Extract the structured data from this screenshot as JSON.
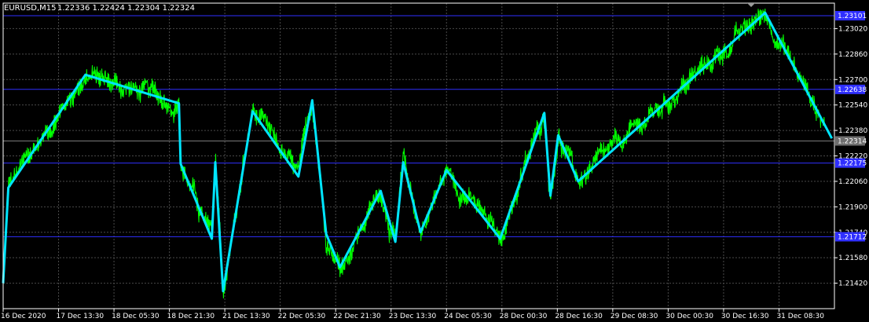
{
  "header": {
    "symbol": "EURUSD,M15",
    "ohlc": "1.22336 1.22424 1.22304 1.22324"
  },
  "colors": {
    "background": "#000000",
    "grid": "#4a4a4a",
    "axis": "#ffffff",
    "price_line": "#00ff00",
    "zigzag": "#00e5ff",
    "level_line": "#2f2fff",
    "level_label_bg": "#2f2fff",
    "current_label_bg": "#6e6e6e"
  },
  "chart_data": {
    "type": "line",
    "y_ticks": [
      "1.23020",
      "1.22860",
      "1.22700",
      "1.22540",
      "1.22380",
      "1.22220",
      "1.22060",
      "1.21900",
      "1.21740",
      "1.21580",
      "1.21420"
    ],
    "y_tick_values": [
      1.2302,
      1.2286,
      1.227,
      1.2254,
      1.2238,
      1.2222,
      1.2206,
      1.219,
      1.2174,
      1.2158,
      1.2142
    ],
    "x_tick_labels": [
      "16 Dec 2020",
      "17 Dec 13:30",
      "18 Dec 05:30",
      "18 Dec 21:30",
      "21 Dec 13:30",
      "22 Dec 05:30",
      "22 Dec 21:30",
      "23 Dec 13:30",
      "24 Dec 05:30",
      "28 Dec 00:30",
      "28 Dec 16:30",
      "29 Dec 08:30",
      "30 Dec 00:30",
      "30 Dec 16:30",
      "31 Dec 08:30"
    ],
    "ylim": [
      1.2126,
      1.2318
    ],
    "x_count": 960,
    "x_tick_index": [
      0,
      64,
      128,
      192,
      256,
      320,
      384,
      448,
      512,
      576,
      640,
      704,
      768,
      832,
      896
    ],
    "levels": [
      {
        "value": 1.23101,
        "label": "1.23101"
      },
      {
        "value": 1.22638,
        "label": "1.22638"
      },
      {
        "value": 1.22175,
        "label": "1.22175"
      },
      {
        "value": 1.21712,
        "label": "1.21712"
      }
    ],
    "current_price": {
      "value": 1.22314,
      "label": "1.22314"
    },
    "zigzag": [
      {
        "i": 0,
        "v": 1.2142
      },
      {
        "i": 6,
        "v": 1.2202
      },
      {
        "i": 95,
        "v": 1.2273
      },
      {
        "i": 203,
        "v": 1.2255
      },
      {
        "i": 205,
        "v": 1.2217
      },
      {
        "i": 241,
        "v": 1.217
      },
      {
        "i": 245,
        "v": 1.2218
      },
      {
        "i": 254,
        "v": 1.2137
      },
      {
        "i": 288,
        "v": 1.225
      },
      {
        "i": 341,
        "v": 1.2209
      },
      {
        "i": 357,
        "v": 1.2257
      },
      {
        "i": 373,
        "v": 1.2173
      },
      {
        "i": 389,
        "v": 1.2152
      },
      {
        "i": 436,
        "v": 1.22
      },
      {
        "i": 453,
        "v": 1.2168
      },
      {
        "i": 462,
        "v": 1.2218
      },
      {
        "i": 482,
        "v": 1.2174
      },
      {
        "i": 512,
        "v": 1.2213
      },
      {
        "i": 574,
        "v": 1.217
      },
      {
        "i": 625,
        "v": 1.2249
      },
      {
        "i": 632,
        "v": 1.2197
      },
      {
        "i": 641,
        "v": 1.2235
      },
      {
        "i": 664,
        "v": 1.2206
      },
      {
        "i": 880,
        "v": 1.2312
      },
      {
        "i": 957,
        "v": 1.2233
      }
    ]
  }
}
